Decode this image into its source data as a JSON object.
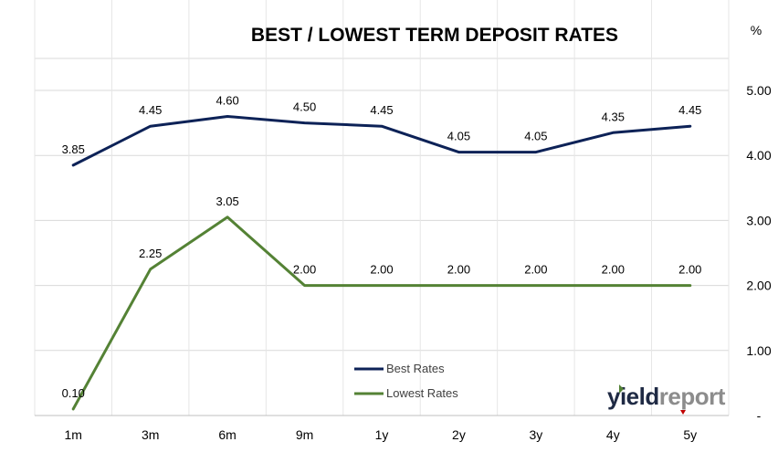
{
  "chart_data": {
    "type": "line",
    "title": "BEST / LOWEST TERM DEPOSIT RATES",
    "y_unit_label": "%",
    "categories": [
      "1m",
      "3m",
      "6m",
      "9m",
      "1y",
      "2y",
      "3y",
      "4y",
      "5y"
    ],
    "series": [
      {
        "name": "Best Rates",
        "color": "#0d2257",
        "values": [
          3.85,
          4.45,
          4.6,
          4.5,
          4.45,
          4.05,
          4.05,
          4.35,
          4.45
        ],
        "labels": [
          "3.85",
          "4.45",
          "4.60",
          "4.50",
          "4.45",
          "4.05",
          "4.05",
          "4.35",
          "4.45"
        ]
      },
      {
        "name": "Lowest Rates",
        "color": "#548235",
        "values": [
          0.1,
          2.25,
          3.05,
          2.0,
          2.0,
          2.0,
          2.0,
          2.0,
          2.0
        ],
        "labels": [
          "0.10",
          "2.25",
          "3.05",
          "2.00",
          "2.00",
          "2.00",
          "2.00",
          "2.00",
          "2.00"
        ]
      }
    ],
    "y_axis": {
      "position": "right",
      "min": 0,
      "max": 5.5,
      "ticks": [
        0,
        1,
        2,
        3,
        4,
        5
      ],
      "tick_labels": [
        "-",
        "1.00",
        "2.00",
        "3.00",
        "4.00",
        "5.00"
      ]
    },
    "grid": true,
    "legend": {
      "placement": "bottom-center"
    }
  },
  "watermark": {
    "text_dark": "yield",
    "text_grey": "report",
    "dark_color": "#1f2a44",
    "grey_color": "#8c8c8c",
    "accent_color": "#c00000"
  }
}
